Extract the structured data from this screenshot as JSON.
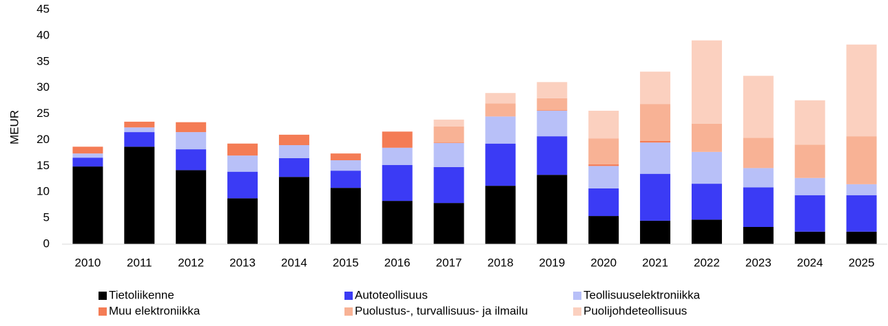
{
  "chart_data": {
    "type": "stacked_bar",
    "y_label": "MEUR",
    "categories": [
      "2010",
      "2011",
      "2012",
      "2013",
      "2014",
      "2015",
      "2016",
      "2017",
      "2018",
      "2019",
      "2020",
      "2021",
      "2022",
      "2023",
      "2024",
      "2025"
    ],
    "series": [
      {
        "name": "Tietoliikenne",
        "color": "#000000",
        "values": [
          14.9,
          18.7,
          14.2,
          8.8,
          12.9,
          10.8,
          8.3,
          7.9,
          11.2,
          13.3,
          5.4,
          4.5,
          4.7,
          3.3,
          2.4,
          2.4
        ]
      },
      {
        "name": "Autoteollisuus",
        "color": "#3b3bf5",
        "values": [
          1.7,
          2.8,
          4.0,
          5.1,
          3.6,
          3.3,
          6.9,
          6.9,
          8.1,
          7.4,
          5.3,
          9.0,
          6.9,
          7.6,
          7.0,
          7.0
        ]
      },
      {
        "name": "Teollisuuselektroniikka",
        "color": "#b8c0f8",
        "values": [
          0.8,
          0.9,
          3.3,
          3.1,
          2.5,
          2.0,
          3.3,
          4.6,
          5.2,
          4.9,
          4.3,
          6.0,
          6.1,
          3.7,
          3.3,
          2.1
        ]
      },
      {
        "name": "Muu elektroniikka",
        "color": "#f47c55",
        "values": [
          1.3,
          1.1,
          1.9,
          2.3,
          2.0,
          1.3,
          3.1,
          0.1,
          0,
          0.1,
          0.3,
          0.3,
          0,
          0,
          0,
          0
        ]
      },
      {
        "name": "Puolustus-, turvallisuus- ja ilmailu",
        "color": "#f8b295",
        "values": [
          0,
          0,
          0,
          0,
          0,
          0,
          0,
          3.1,
          2.5,
          2.3,
          5.0,
          7.1,
          5.4,
          5.8,
          6.4,
          9.2
        ]
      },
      {
        "name": "Puolijohdeteollisuus",
        "color": "#fbd0bf",
        "values": [
          0,
          0,
          0,
          0,
          0,
          0,
          0,
          1.3,
          2.0,
          3.1,
          5.3,
          6.2,
          16.0,
          11.9,
          8.5,
          17.6
        ]
      }
    ],
    "ylim": [
      0,
      45
    ],
    "yticks": [
      0,
      5,
      10,
      15,
      20,
      25,
      30,
      35,
      40,
      45
    ],
    "grid": false
  }
}
